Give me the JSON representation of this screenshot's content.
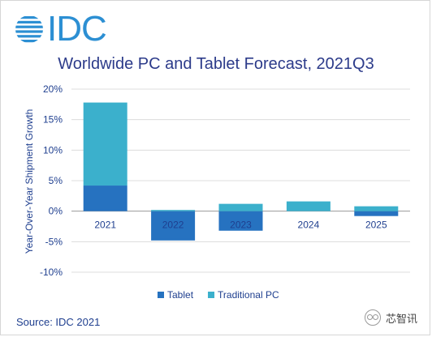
{
  "header": {
    "logo_text": "IDC"
  },
  "chart_data": {
    "type": "bar",
    "stacked": true,
    "title": "Worldwide PC and Tablet Forecast, 2021Q3",
    "ylabel": "Year-Over-Year  Shipment Growth",
    "xlabel": "",
    "categories": [
      "2021",
      "2022",
      "2023",
      "2024",
      "2025"
    ],
    "ylim": [
      -10,
      20
    ],
    "yticks": [
      20,
      15,
      10,
      5,
      0,
      -5,
      -10
    ],
    "ytick_labels": [
      "20%",
      "15%",
      "10%",
      "5%",
      "0%",
      "-5%",
      "-10%"
    ],
    "grid": "horizontal",
    "legend_position": "bottom",
    "series": [
      {
        "name": "Tablet",
        "color": "#2672c0",
        "values": [
          4.2,
          -4.8,
          -3.2,
          0.0,
          -0.8
        ]
      },
      {
        "name": "Traditional PC",
        "color": "#3bb0cc",
        "values": [
          13.6,
          0.2,
          1.2,
          1.6,
          0.8
        ]
      }
    ]
  },
  "footer": {
    "source": "Source: IDC 2021",
    "watermark": "芯智讯"
  }
}
